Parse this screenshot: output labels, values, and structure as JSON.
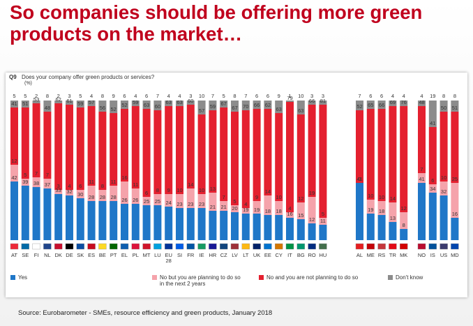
{
  "title": "So companies should be offering more green products on the market…",
  "question": {
    "number": "Q9",
    "text": "Does your company offer green products or services?",
    "unit": "(%)"
  },
  "colors": {
    "yes": "#1f77c8",
    "planning": "#f5a3ab",
    "not_planning": "#e4202f",
    "dont_know": "#8c8c8c"
  },
  "chart_data": {
    "type": "bar",
    "stacked": true,
    "ylim": [
      0,
      100
    ],
    "grid": false,
    "legend": "bottom",
    "categories": [
      "AT",
      "SE",
      "FI",
      "NL",
      "DK",
      "DE",
      "SK",
      "ES",
      "BE",
      "PT",
      "EL",
      "PL",
      "MT",
      "LU",
      "EU 28",
      "SI",
      "FR",
      "IE",
      "HR",
      "CZ",
      "LV",
      "LT",
      "UK",
      "EE",
      "CY",
      "IT",
      "BG",
      "RO",
      "HU",
      "AL",
      "ME",
      "RS",
      "TR",
      "MK",
      "NO",
      "IS",
      "US",
      "MD"
    ],
    "category_flags": [
      "#ed2939",
      "#006aa7",
      "#ffffff",
      "#21468b",
      "#c8102e",
      "#000000",
      "#0b4ea2",
      "#c60b1e",
      "#fdda24",
      "#006600",
      "#0d5eaf",
      "#dc143c",
      "#cf142b",
      "#00a1de",
      "#003399",
      "#005ce6",
      "#0055a4",
      "#169b62",
      "#171796",
      "#11457e",
      "#9e3039",
      "#fdb913",
      "#012169",
      "#0072ce",
      "#d47600",
      "#009246",
      "#00966e",
      "#002b7f",
      "#436f4d",
      "#e41e20",
      "#c40308",
      "#c6363c",
      "#e30a17",
      "#d20000",
      "#ba0c2f",
      "#02529c",
      "#3c3b6e",
      "#0046ae"
    ],
    "groups": [
      [
        0,
        28
      ],
      [
        29,
        33
      ],
      [
        34,
        37
      ]
    ],
    "series": [
      {
        "name": "Yes",
        "values": [
          42,
          39,
          38,
          37,
          33,
          32,
          30,
          28,
          28,
          28,
          26,
          26,
          25,
          25,
          24,
          23,
          23,
          23,
          21,
          21,
          20,
          19,
          19,
          18,
          18,
          16,
          15,
          12,
          11,
          41,
          19,
          18,
          13,
          8,
          41,
          34,
          32,
          16
        ]
      },
      {
        "name": "No but you are planning to do so in the next 2 years",
        "values": [
          12,
          5,
          7,
          7,
          3,
          4,
          6,
          11,
          8,
          11,
          16,
          11,
          6,
          8,
          9,
          10,
          14,
          10,
          13,
          7,
          5,
          4,
          9,
          14,
          10,
          4,
          12,
          19,
          5,
          0,
          10,
          10,
          14,
          12,
          7,
          6,
          10,
          25
        ]
      },
      {
        "name": "No and you are not planning to do so",
        "values": [
          41,
          51,
          53,
          48,
          62,
          61,
          59,
          57,
          56,
          52,
          52,
          59,
          63,
          60,
          63,
          63,
          60,
          57,
          59,
          67,
          67,
          70,
          66,
          62,
          63,
          79,
          63,
          66,
          81,
          52,
          65,
          66,
          69,
          76,
          48,
          41,
          50,
          51
        ]
      },
      {
        "name": "Don't know",
        "values": [
          5,
          5,
          2,
          8,
          2,
          3,
          5,
          4,
          8,
          9,
          6,
          4,
          6,
          7,
          4,
          4,
          3,
          10,
          7,
          5,
          8,
          7,
          6,
          6,
          9,
          1,
          10,
          3,
          3,
          7,
          6,
          6,
          4,
          4,
          4,
          19,
          8,
          8
        ]
      }
    ]
  },
  "source": "Source: Eurobarometer - SMEs, resource efficiency and green products, January 2018"
}
